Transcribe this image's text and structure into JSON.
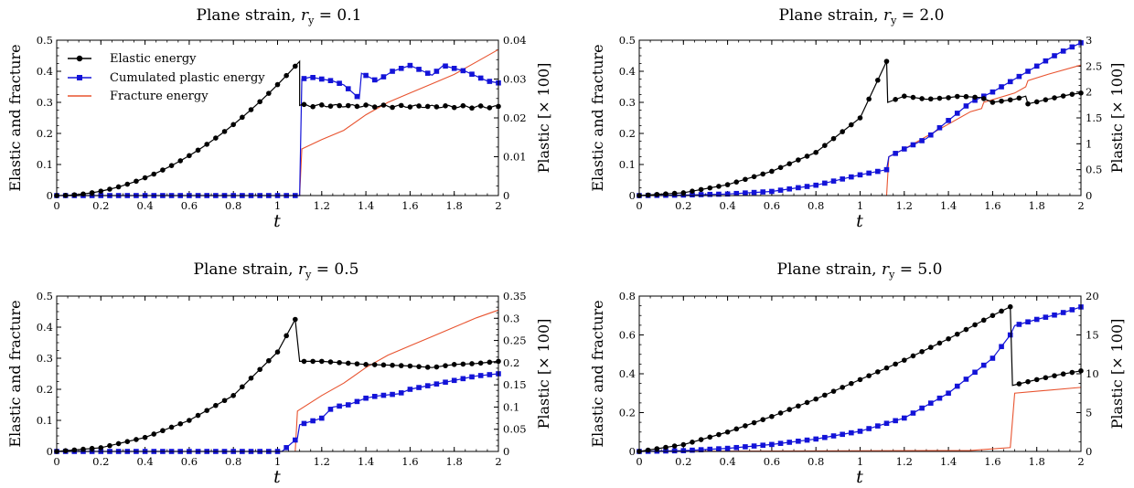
{
  "colors": {
    "elastic": "#000000",
    "plastic": "#1313d8",
    "fracture": "#e8532f"
  },
  "chart_data": [
    {
      "type": "line",
      "title": "Plane strain, r_y = 0.1",
      "title_prefix": "Plane strain, ",
      "title_r": "r",
      "title_sub": "y",
      "title_eq": " = 0.1",
      "xlabel": "t",
      "ylabel": "Elastic and fracture",
      "y2label": "Plastic [× 100]",
      "xlim": [
        0,
        2
      ],
      "ylim": [
        0,
        0.5
      ],
      "y2lim": [
        0,
        0.04
      ],
      "xticks": [
        "0",
        "0.2",
        "0.4",
        "0.6",
        "0.8",
        "1",
        "1.2",
        "1.4",
        "1.6",
        "1.8",
        "2"
      ],
      "yticks": [
        "0",
        "0.1",
        "0.2",
        "0.3",
        "0.4",
        "0.5"
      ],
      "y2ticks": [
        "0",
        "0.01",
        "0.02",
        "0.03",
        "0.04"
      ],
      "legend": [
        "Elastic energy",
        "Cumulated plastic energy",
        "Fracture energy"
      ],
      "legend_position": "top-left",
      "series": [
        {
          "name": "Elastic energy",
          "axis": "left",
          "color_key": "elastic",
          "marker": "circle",
          "x": [
            0.0,
            1.1,
            1.1,
            2.0
          ],
          "y": [
            0.0,
            0.432,
            0.29,
            0.285
          ],
          "mode": "quad_then_flat"
        },
        {
          "name": "Cumulated plastic energy",
          "axis": "right",
          "color_key": "plastic",
          "marker": "square",
          "points": [
            [
              0.0,
              0.0
            ],
            [
              1.1,
              0.0
            ],
            [
              1.11,
              0.03
            ],
            [
              1.15,
              0.0305
            ],
            [
              1.2,
              0.03
            ],
            [
              1.25,
              0.0295
            ],
            [
              1.3,
              0.0285
            ],
            [
              1.37,
              0.025
            ],
            [
              1.38,
              0.0315
            ],
            [
              1.45,
              0.0295
            ],
            [
              1.52,
              0.032
            ],
            [
              1.6,
              0.0335
            ],
            [
              1.7,
              0.031
            ],
            [
              1.75,
              0.0335
            ],
            [
              1.85,
              0.032
            ],
            [
              1.95,
              0.0295
            ],
            [
              2.0,
              0.029
            ]
          ]
        },
        {
          "name": "Fracture energy",
          "axis": "left",
          "color_key": "fracture",
          "marker": "none",
          "points": [
            [
              0.0,
              0.0
            ],
            [
              1.1,
              0.0
            ],
            [
              1.11,
              0.15
            ],
            [
              1.2,
              0.18
            ],
            [
              1.3,
              0.21
            ],
            [
              1.4,
              0.26
            ],
            [
              1.5,
              0.3
            ],
            [
              1.6,
              0.33
            ],
            [
              1.7,
              0.36
            ],
            [
              1.8,
              0.39
            ],
            [
              1.9,
              0.43
            ],
            [
              2.0,
              0.47
            ]
          ]
        }
      ]
    },
    {
      "type": "line",
      "title": "Plane strain, r_y = 2.0",
      "title_prefix": "Plane strain, ",
      "title_r": "r",
      "title_sub": "y",
      "title_eq": " = 2.0",
      "xlabel": "t",
      "ylabel": "Elastic and fracture",
      "y2label": "Plastic [× 100]",
      "xlim": [
        0,
        2
      ],
      "ylim": [
        0,
        0.5
      ],
      "y2lim": [
        0,
        3
      ],
      "xticks": [
        "0",
        "0.2",
        "0.4",
        "0.6",
        "0.8",
        "1",
        "1.2",
        "1.4",
        "1.6",
        "1.8",
        "2"
      ],
      "yticks": [
        "0",
        "0.1",
        "0.2",
        "0.3",
        "0.4",
        "0.5"
      ],
      "y2ticks": [
        "0",
        "0.5",
        "1",
        "1.5",
        "2",
        "2.5",
        "3"
      ],
      "series": [
        {
          "name": "Elastic energy",
          "axis": "left",
          "color_key": "elastic",
          "marker": "circle",
          "points": [
            [
              0.0,
              0.0
            ],
            [
              0.2,
              0.009
            ],
            [
              0.4,
              0.035
            ],
            [
              0.6,
              0.078
            ],
            [
              0.8,
              0.139
            ],
            [
              1.0,
              0.25
            ],
            [
              1.12,
              0.432
            ],
            [
              1.125,
              0.3
            ],
            [
              1.2,
              0.32
            ],
            [
              1.3,
              0.31
            ],
            [
              1.4,
              0.315
            ],
            [
              1.45,
              0.32
            ],
            [
              1.55,
              0.315
            ],
            [
              1.6,
              0.3
            ],
            [
              1.7,
              0.31
            ],
            [
              1.75,
              0.32
            ],
            [
              1.76,
              0.295
            ],
            [
              1.85,
              0.31
            ],
            [
              1.95,
              0.325
            ],
            [
              2.0,
              0.33
            ]
          ]
        },
        {
          "name": "Cumulated plastic energy",
          "axis": "right",
          "color_key": "plastic",
          "marker": "square",
          "points": [
            [
              0.0,
              0.0
            ],
            [
              0.2,
              0.01
            ],
            [
              0.4,
              0.03
            ],
            [
              0.6,
              0.08
            ],
            [
              0.8,
              0.2
            ],
            [
              1.0,
              0.4
            ],
            [
              1.12,
              0.5
            ],
            [
              1.13,
              0.75
            ],
            [
              1.2,
              0.9
            ],
            [
              1.3,
              1.1
            ],
            [
              1.4,
              1.45
            ],
            [
              1.5,
              1.8
            ],
            [
              1.6,
              2.0
            ],
            [
              1.7,
              2.25
            ],
            [
              1.8,
              2.5
            ],
            [
              1.9,
              2.75
            ],
            [
              2.0,
              2.95
            ]
          ]
        },
        {
          "name": "Fracture energy",
          "axis": "left",
          "color_key": "fracture",
          "marker": "none",
          "points": [
            [
              0.0,
              0.0
            ],
            [
              1.12,
              0.0
            ],
            [
              1.13,
              0.125
            ],
            [
              1.2,
              0.15
            ],
            [
              1.3,
              0.19
            ],
            [
              1.4,
              0.23
            ],
            [
              1.5,
              0.27
            ],
            [
              1.55,
              0.28
            ],
            [
              1.56,
              0.3
            ],
            [
              1.7,
              0.33
            ],
            [
              1.75,
              0.35
            ],
            [
              1.76,
              0.37
            ],
            [
              1.85,
              0.39
            ],
            [
              2.0,
              0.42
            ]
          ]
        }
      ]
    },
    {
      "type": "line",
      "title": "Plane strain, r_y = 0.5",
      "title_prefix": "Plane strain, ",
      "title_r": "r",
      "title_sub": "y",
      "title_eq": " = 0.5",
      "xlabel": "t",
      "ylabel": "Elastic and fracture",
      "y2label": "Plastic [× 100]",
      "xlim": [
        0,
        2
      ],
      "ylim": [
        0,
        0.5
      ],
      "y2lim": [
        0,
        0.35
      ],
      "xticks": [
        "0",
        "0.2",
        "0.4",
        "0.6",
        "0.8",
        "1",
        "1.2",
        "1.4",
        "1.6",
        "1.8",
        "2"
      ],
      "yticks": [
        "0",
        "0.1",
        "0.2",
        "0.3",
        "0.4",
        "0.5"
      ],
      "y2ticks": [
        "0",
        "0.05",
        "0.1",
        "0.15",
        "0.2",
        "0.25",
        "0.3",
        "0.35"
      ],
      "series": [
        {
          "name": "Elastic energy",
          "axis": "left",
          "color_key": "elastic",
          "marker": "circle",
          "points": [
            [
              0.0,
              0.0
            ],
            [
              0.2,
              0.012
            ],
            [
              0.4,
              0.045
            ],
            [
              0.6,
              0.1
            ],
            [
              0.8,
              0.18
            ],
            [
              1.0,
              0.32
            ],
            [
              1.08,
              0.425
            ],
            [
              1.1,
              0.29
            ],
            [
              1.2,
              0.29
            ],
            [
              1.3,
              0.285
            ],
            [
              1.4,
              0.28
            ],
            [
              1.5,
              0.278
            ],
            [
              1.6,
              0.275
            ],
            [
              1.7,
              0.27
            ],
            [
              1.8,
              0.28
            ],
            [
              1.9,
              0.283
            ],
            [
              2.0,
              0.29
            ]
          ]
        },
        {
          "name": "Cumulated plastic energy",
          "axis": "right",
          "color_key": "plastic",
          "marker": "square",
          "points": [
            [
              0.0,
              0.0
            ],
            [
              1.02,
              0.0
            ],
            [
              1.09,
              0.03
            ],
            [
              1.1,
              0.06
            ],
            [
              1.2,
              0.075
            ],
            [
              1.25,
              0.1
            ],
            [
              1.32,
              0.105
            ],
            [
              1.4,
              0.12
            ],
            [
              1.45,
              0.125
            ],
            [
              1.55,
              0.13
            ],
            [
              1.6,
              0.14
            ],
            [
              1.7,
              0.15
            ],
            [
              1.8,
              0.16
            ],
            [
              1.9,
              0.17
            ],
            [
              2.0,
              0.175
            ]
          ]
        },
        {
          "name": "Fracture energy",
          "axis": "left",
          "color_key": "fracture",
          "marker": "none",
          "points": [
            [
              0.0,
              0.0
            ],
            [
              1.08,
              0.0
            ],
            [
              1.09,
              0.13
            ],
            [
              1.2,
              0.18
            ],
            [
              1.3,
              0.22
            ],
            [
              1.4,
              0.27
            ],
            [
              1.5,
              0.31
            ],
            [
              1.6,
              0.34
            ],
            [
              1.7,
              0.37
            ],
            [
              1.8,
              0.4
            ],
            [
              1.9,
              0.43
            ],
            [
              2.0,
              0.455
            ]
          ]
        }
      ]
    },
    {
      "type": "line",
      "title": "Plane strain, r_y = 5.0",
      "title_prefix": "Plane strain, ",
      "title_r": "r",
      "title_sub": "y",
      "title_eq": " = 5.0",
      "xlabel": "t",
      "ylabel": "Elastic and fracture",
      "y2label": "Plastic [× 100]",
      "xlim": [
        0,
        2
      ],
      "ylim": [
        0,
        0.8
      ],
      "y2lim": [
        0,
        20
      ],
      "xticks": [
        "0",
        "0.2",
        "0.4",
        "0.6",
        "0.8",
        "1",
        "1.2",
        "1.4",
        "1.6",
        "1.8",
        "2"
      ],
      "yticks": [
        "0",
        "0.2",
        "0.4",
        "0.6",
        "0.8"
      ],
      "y2ticks": [
        "0",
        "5",
        "10",
        "15",
        "20"
      ],
      "series": [
        {
          "name": "Elastic energy",
          "axis": "left",
          "color_key": "elastic",
          "marker": "circle",
          "points": [
            [
              0.0,
              0.0
            ],
            [
              0.2,
              0.035
            ],
            [
              0.4,
              0.1
            ],
            [
              0.6,
              0.18
            ],
            [
              0.8,
              0.27
            ],
            [
              1.0,
              0.37
            ],
            [
              1.2,
              0.47
            ],
            [
              1.4,
              0.58
            ],
            [
              1.6,
              0.7
            ],
            [
              1.68,
              0.745
            ],
            [
              1.69,
              0.34
            ],
            [
              1.8,
              0.37
            ],
            [
              1.9,
              0.395
            ],
            [
              2.0,
              0.415
            ]
          ]
        },
        {
          "name": "Cumulated plastic energy",
          "axis": "right",
          "color_key": "plastic",
          "marker": "square",
          "points": [
            [
              0.0,
              0.0
            ],
            [
              0.2,
              0.1
            ],
            [
              0.4,
              0.4
            ],
            [
              0.6,
              0.9
            ],
            [
              0.8,
              1.6
            ],
            [
              1.0,
              2.6
            ],
            [
              1.2,
              4.3
            ],
            [
              1.4,
              7.5
            ],
            [
              1.6,
              12.0
            ],
            [
              1.68,
              15.0
            ],
            [
              1.7,
              16.2
            ],
            [
              1.8,
              17.0
            ],
            [
              1.9,
              17.7
            ],
            [
              2.0,
              18.6
            ]
          ]
        },
        {
          "name": "Fracture energy",
          "axis": "left",
          "color_key": "fracture",
          "marker": "none",
          "points": [
            [
              0.0,
              0.0
            ],
            [
              1.5,
              0.005
            ],
            [
              1.68,
              0.02
            ],
            [
              1.7,
              0.3
            ],
            [
              2.0,
              0.33
            ]
          ]
        }
      ]
    }
  ]
}
